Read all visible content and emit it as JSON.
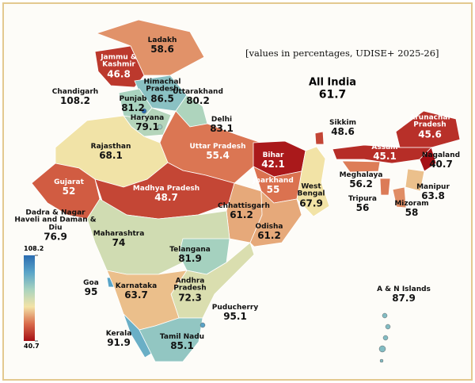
{
  "title": "[values in percentages, UDISE+ 2025-26]",
  "national": {
    "label": "All India",
    "value": 61.7
  },
  "colorbar": {
    "max": 108.2,
    "min": 40.7
  },
  "regions": [
    {
      "name": "Jammu & Kashmir",
      "value": 46.8
    },
    {
      "name": "Ladakh",
      "value": 58.6
    },
    {
      "name": "Himachal Pradesh",
      "value": 86.5
    },
    {
      "name": "Punjab",
      "value": 81.2
    },
    {
      "name": "Chandigarh",
      "value": 108.2
    },
    {
      "name": "Uttarakhand",
      "value": 80.2
    },
    {
      "name": "Haryana",
      "value": 79.1
    },
    {
      "name": "Delhi",
      "value": 83.1
    },
    {
      "name": "Rajasthan",
      "value": 68.1
    },
    {
      "name": "Uttar Pradesh",
      "value": 55.4
    },
    {
      "name": "Bihar",
      "value": 42.1
    },
    {
      "name": "Sikkim",
      "value": 48.6
    },
    {
      "name": "Arunachal Pradesh",
      "value": 45.6
    },
    {
      "name": "Assam",
      "value": 45.1
    },
    {
      "name": "Nagaland",
      "value": 40.7
    },
    {
      "name": "Meghalaya",
      "value": 56.2
    },
    {
      "name": "Manipur",
      "value": 63.8
    },
    {
      "name": "Mizoram",
      "value": 58
    },
    {
      "name": "Tripura",
      "value": 56
    },
    {
      "name": "West Bengal",
      "value": 67.9
    },
    {
      "name": "Jharkhand",
      "value": 55
    },
    {
      "name": "Gujarat",
      "value": 52
    },
    {
      "name": "Madhya Pradesh",
      "value": 48.7
    },
    {
      "name": "Chhattisgarh",
      "value": 61.2
    },
    {
      "name": "Odisha",
      "value": 61.2
    },
    {
      "name": "Dadra & Nagar Haveli and Daman & Diu",
      "value": 76.9
    },
    {
      "name": "Maharashtra",
      "value": 74
    },
    {
      "name": "Telangana",
      "value": 81.9
    },
    {
      "name": "Andhra Pradesh",
      "value": 72.3
    },
    {
      "name": "Goa",
      "value": 95
    },
    {
      "name": "Karnataka",
      "value": 63.7
    },
    {
      "name": "Kerala",
      "value": 91.9
    },
    {
      "name": "Tamil Nadu",
      "value": 85.1
    },
    {
      "name": "Puducherry",
      "value": 95.1
    },
    {
      "name": "A & N Islands",
      "value": 87.9
    }
  ]
}
